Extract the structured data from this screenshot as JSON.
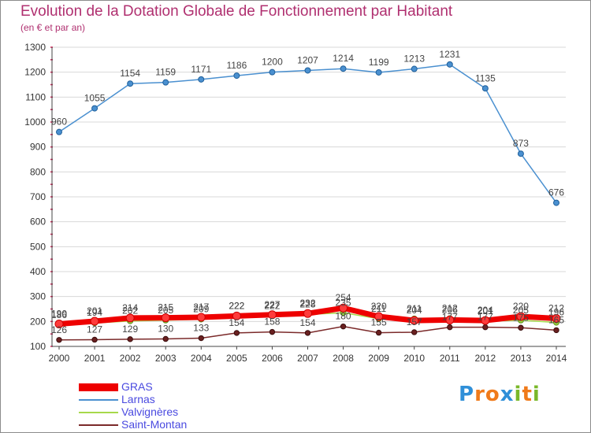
{
  "title": "Evolution de la Dotation Globale de Fonctionnement par Habitant",
  "subtitle": "(en € et par an)",
  "logo": {
    "letters": [
      "P",
      "r",
      "o",
      "x",
      "i",
      "t",
      "i"
    ],
    "colors": [
      "#2f8fd8",
      "#f07a1a",
      "#f07a1a",
      "#2f8fd8",
      "#7ab82a",
      "#f07a1a",
      "#7ab82a"
    ]
  },
  "chart_data": {
    "type": "line",
    "title": "Evolution de la Dotation Globale de Fonctionnement par Habitant",
    "ylabel": "(en € et par an)",
    "x": [
      "2000",
      "2001",
      "2002",
      "2003",
      "2004",
      "2005",
      "2006",
      "2007",
      "2008",
      "2009",
      "2010",
      "2011",
      "2012",
      "2013",
      "2014"
    ],
    "ylim": [
      100,
      1300
    ],
    "yticks": [
      100,
      200,
      300,
      400,
      500,
      600,
      700,
      800,
      900,
      1000,
      1100,
      1200,
      1300
    ],
    "series": [
      {
        "name": "GRAS",
        "color": "#ee0000",
        "line_width": 7,
        "values": [
          190,
          201,
          214,
          215,
          217,
          222,
          227,
          232,
          254,
          220,
          204,
          206,
          204,
          220,
          212
        ],
        "label_values": [
          190,
          201,
          214,
          215,
          217,
          222,
          227,
          232,
          254,
          220,
          204,
          206,
          204,
          220,
          212
        ]
      },
      {
        "name": "Larnas",
        "color": "#4a90d0",
        "line_width": 1.5,
        "values": [
          960,
          1055,
          1154,
          1159,
          1171,
          1186,
          1200,
          1207,
          1214,
          1199,
          1213,
          1231,
          1135,
          873,
          676
        ],
        "label_values": [
          960,
          1055,
          1154,
          1159,
          1171,
          1186,
          1200,
          1207,
          1214,
          1199,
          1213,
          1231,
          1135,
          873,
          676
        ]
      },
      {
        "name": "Valvignères",
        "color": "#a6d94a",
        "line_width": 1.5,
        "values": [
          186,
          194,
          202,
          205,
          209,
          222,
          222,
          228,
          235,
          211,
          211,
          212,
          201,
          205,
          196
        ],
        "label_values": [
          186,
          194,
          202,
          205,
          209,
          222,
          222,
          228,
          235,
          211,
          211,
          212,
          201,
          205,
          196
        ]
      },
      {
        "name": "Saint-Montan",
        "color": "#7b2a2a",
        "line_width": 1.5,
        "values": [
          126,
          127,
          129,
          130,
          133,
          154,
          158,
          154,
          180,
          155,
          157,
          177,
          177,
          175,
          165
        ],
        "label_values": [
          126,
          127,
          129,
          130,
          133,
          154,
          158,
          154,
          180,
          155,
          157,
          177,
          177,
          175,
          165
        ]
      }
    ]
  }
}
